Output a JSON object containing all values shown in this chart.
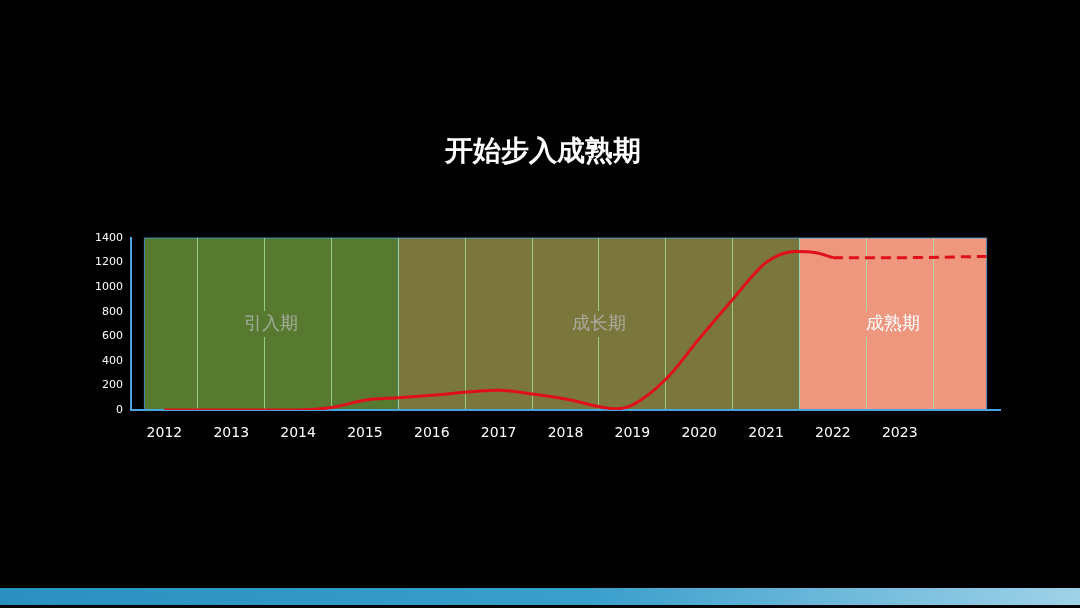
{
  "chart_data": {
    "type": "line",
    "title": "开始步入成熟期",
    "xlim": [
      2011.5,
      2024.5
    ],
    "xticks": [
      2012,
      {
        "value": 2012.5,
        "label": null
      },
      2013,
      {
        "value": 2013.5,
        "label": null
      },
      2014,
      {
        "value": 2014.5,
        "label": null
      },
      2015,
      {
        "value": 2015.5,
        "label": null
      },
      2016,
      {
        "value": 2016.5,
        "label": null
      },
      2017,
      {
        "value": 2017.5,
        "label": null
      },
      2018,
      {
        "value": 2018.5,
        "label": null
      },
      2019,
      {
        "value": 2019.5,
        "label": null
      },
      2020,
      {
        "value": 2020.5,
        "label": null
      },
      2021,
      {
        "value": 2021.5,
        "label": null
      },
      2022,
      {
        "value": 2022.5,
        "label": null
      },
      2023,
      {
        "value": 2023.5,
        "label": null
      }
    ],
    "ylim": [
      0,
      1400
    ],
    "yticks": [
      0,
      200,
      400,
      600,
      800,
      1000,
      1200,
      1400
    ],
    "grid": "x",
    "legend": false,
    "bands": [
      {
        "axis": "x",
        "from": 2011.7,
        "to": 2015.5,
        "label": "引入期",
        "color": "#587a30"
      },
      {
        "axis": "x",
        "from": 2015.5,
        "to": 2021.5,
        "label": "成长期",
        "color": "#7a763c"
      },
      {
        "axis": "x",
        "from": 2021.5,
        "to": 2024.3,
        "label": "成熟期",
        "color": "#ef967e"
      }
    ],
    "series": [
      {
        "color": "#e0101a",
        "line_style": "solid",
        "x": [
          2012,
          2013,
          2014,
          2014.5,
          2015,
          2015.5,
          2016,
          2017,
          2017.5,
          2018,
          2018.75,
          2019,
          2019.5,
          2020,
          2020.5,
          2021,
          2021.45,
          2021.75,
          2022
        ],
        "values": [
          0,
          0,
          0,
          20,
          80,
          100,
          120,
          160,
          130,
          90,
          10,
          40,
          250,
          580,
          900,
          1200,
          1290,
          1280,
          1240
        ]
      },
      {
        "color": "#e0101a",
        "line_style": "dashed",
        "x": [
          2022,
          2023,
          2024.3
        ],
        "values": [
          1240,
          1240,
          1250
        ]
      }
    ]
  }
}
